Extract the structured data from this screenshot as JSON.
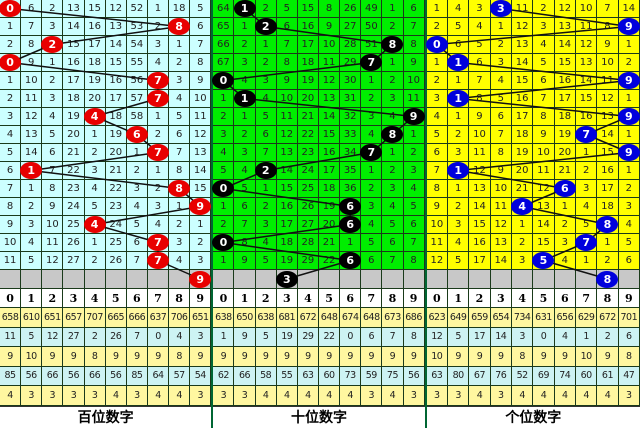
{
  "chart_data": {
    "type": "table",
    "header_digits": [
      "0",
      "1",
      "2",
      "3",
      "4",
      "5",
      "6",
      "7",
      "8",
      "9"
    ],
    "panels": [
      {
        "label": "百位数字",
        "bg": "#ccffff",
        "ball_color": "#e80000",
        "rows": [
          [
            0,
            6,
            2,
            13,
            15,
            12,
            52,
            1,
            18,
            5
          ],
          [
            1,
            7,
            3,
            14,
            16,
            13,
            53,
            2,
            8,
            6
          ],
          [
            2,
            8,
            2,
            15,
            17,
            14,
            54,
            3,
            1,
            7
          ],
          [
            0,
            9,
            1,
            16,
            18,
            15,
            55,
            4,
            2,
            8
          ],
          [
            1,
            10,
            2,
            17,
            19,
            16,
            56,
            7,
            3,
            9
          ],
          [
            2,
            11,
            3,
            18,
            20,
            17,
            57,
            7,
            4,
            10
          ],
          [
            3,
            12,
            4,
            19,
            4,
            18,
            58,
            1,
            5,
            11
          ],
          [
            4,
            13,
            5,
            20,
            1,
            19,
            6,
            2,
            6,
            12
          ],
          [
            5,
            14,
            6,
            21,
            2,
            20,
            1,
            7,
            7,
            13
          ],
          [
            6,
            1,
            7,
            22,
            3,
            21,
            2,
            1,
            8,
            14
          ],
          [
            7,
            1,
            8,
            23,
            4,
            22,
            3,
            2,
            8,
            15
          ],
          [
            8,
            2,
            9,
            24,
            5,
            23,
            4,
            3,
            1,
            9
          ],
          [
            9,
            3,
            10,
            25,
            4,
            24,
            5,
            4,
            2,
            1
          ],
          [
            10,
            4,
            11,
            26,
            1,
            25,
            6,
            7,
            3,
            2
          ],
          [
            11,
            5,
            12,
            27,
            2,
            26,
            7,
            7,
            4,
            3
          ]
        ],
        "draws": [
          0,
          8,
          2,
          0,
          7,
          7,
          4,
          6,
          7,
          1,
          8,
          9,
          4,
          7,
          7
        ],
        "next": 9,
        "stats": [
          [
            "658",
            "610",
            "651",
            "657",
            "707",
            "665",
            "666",
            "637",
            "706",
            "651"
          ],
          [
            "11",
            "5",
            "12",
            "27",
            "2",
            "26",
            "7",
            "0",
            "4",
            "3"
          ],
          [
            "9",
            "10",
            "9",
            "9",
            "8",
            "9",
            "9",
            "9",
            "8",
            "9"
          ],
          [
            "85",
            "56",
            "66",
            "56",
            "66",
            "56",
            "85",
            "64",
            "57",
            "54"
          ],
          [
            "4",
            "3",
            "3",
            "3",
            "3",
            "4",
            "3",
            "4",
            "4",
            "3"
          ]
        ]
      },
      {
        "label": "十位数字",
        "bg": "#00ee00",
        "ball_color": "#000000",
        "rows": [
          [
            64,
            1,
            2,
            5,
            15,
            8,
            26,
            49,
            1,
            6
          ],
          [
            65,
            1,
            2,
            6,
            16,
            9,
            27,
            50,
            2,
            7
          ],
          [
            66,
            2,
            1,
            7,
            17,
            10,
            28,
            51,
            8,
            8
          ],
          [
            67,
            3,
            2,
            8,
            18,
            11,
            29,
            7,
            1,
            9
          ],
          [
            0,
            4,
            3,
            9,
            19,
            12,
            30,
            1,
            2,
            10
          ],
          [
            1,
            1,
            4,
            10,
            20,
            13,
            31,
            2,
            3,
            11
          ],
          [
            2,
            1,
            5,
            11,
            21,
            14,
            32,
            3,
            4,
            9
          ],
          [
            3,
            2,
            6,
            12,
            22,
            15,
            33,
            4,
            8,
            1
          ],
          [
            4,
            3,
            7,
            13,
            23,
            16,
            34,
            7,
            1,
            2
          ],
          [
            5,
            4,
            2,
            14,
            24,
            17,
            35,
            1,
            2,
            3
          ],
          [
            0,
            5,
            1,
            15,
            25,
            18,
            36,
            2,
            3,
            4
          ],
          [
            1,
            6,
            2,
            16,
            26,
            19,
            6,
            3,
            4,
            5
          ],
          [
            2,
            7,
            3,
            17,
            27,
            20,
            6,
            4,
            5,
            6
          ],
          [
            0,
            8,
            4,
            18,
            28,
            21,
            1,
            5,
            6,
            7
          ],
          [
            1,
            9,
            5,
            19,
            29,
            22,
            6,
            6,
            7,
            8
          ]
        ],
        "draws": [
          1,
          2,
          8,
          7,
          0,
          1,
          9,
          8,
          7,
          2,
          0,
          6,
          6,
          0,
          6
        ],
        "next": 3,
        "stats": [
          [
            "638",
            "650",
            "638",
            "681",
            "672",
            "648",
            "674",
            "648",
            "673",
            "686"
          ],
          [
            "1",
            "9",
            "5",
            "19",
            "29",
            "22",
            "0",
            "6",
            "7",
            "8"
          ],
          [
            "9",
            "9",
            "9",
            "9",
            "9",
            "9",
            "9",
            "9",
            "9",
            "9"
          ],
          [
            "62",
            "66",
            "58",
            "55",
            "63",
            "60",
            "73",
            "59",
            "75",
            "56"
          ],
          [
            "3",
            "3",
            "4",
            "4",
            "4",
            "4",
            "4",
            "3",
            "4",
            "3"
          ]
        ]
      },
      {
        "label": "个位数字",
        "bg": "#ffff00",
        "ball_color": "#0000dd",
        "rows": [
          [
            1,
            4,
            3,
            3,
            11,
            2,
            12,
            10,
            7,
            14
          ],
          [
            2,
            5,
            4,
            1,
            12,
            3,
            13,
            11,
            8,
            9
          ],
          [
            0,
            6,
            5,
            2,
            13,
            4,
            14,
            12,
            9,
            1
          ],
          [
            1,
            1,
            6,
            3,
            14,
            5,
            15,
            13,
            10,
            2
          ],
          [
            2,
            1,
            7,
            4,
            15,
            6,
            16,
            14,
            11,
            9
          ],
          [
            3,
            1,
            8,
            5,
            16,
            7,
            17,
            15,
            12,
            1
          ],
          [
            4,
            1,
            9,
            6,
            17,
            8,
            18,
            16,
            13,
            9
          ],
          [
            5,
            2,
            10,
            7,
            18,
            9,
            19,
            7,
            14,
            1
          ],
          [
            6,
            3,
            11,
            8,
            19,
            10,
            20,
            1,
            15,
            9
          ],
          [
            7,
            1,
            12,
            9,
            20,
            11,
            21,
            2,
            16,
            1
          ],
          [
            8,
            1,
            13,
            10,
            21,
            12,
            6,
            3,
            17,
            2
          ],
          [
            9,
            2,
            14,
            11,
            4,
            13,
            1,
            4,
            18,
            3
          ],
          [
            10,
            3,
            15,
            12,
            1,
            14,
            2,
            5,
            8,
            4
          ],
          [
            11,
            4,
            16,
            13,
            2,
            15,
            3,
            7,
            1,
            5
          ],
          [
            12,
            5,
            17,
            14,
            3,
            5,
            4,
            1,
            2,
            6
          ]
        ],
        "draws": [
          3,
          9,
          0,
          1,
          9,
          1,
          9,
          7,
          9,
          1,
          6,
          4,
          8,
          7,
          5
        ],
        "next": 8,
        "stats": [
          [
            "623",
            "649",
            "659",
            "654",
            "734",
            "631",
            "656",
            "629",
            "672",
            "701"
          ],
          [
            "12",
            "5",
            "17",
            "14",
            "3",
            "0",
            "4",
            "1",
            "2",
            "6"
          ],
          [
            "10",
            "9",
            "9",
            "9",
            "8",
            "9",
            "9",
            "10",
            "9",
            "8"
          ],
          [
            "63",
            "80",
            "67",
            "76",
            "52",
            "69",
            "74",
            "60",
            "61",
            "47"
          ],
          [
            "3",
            "3",
            "4",
            "3",
            "4",
            "4",
            "4",
            "4",
            "4",
            "3"
          ]
        ]
      }
    ]
  }
}
